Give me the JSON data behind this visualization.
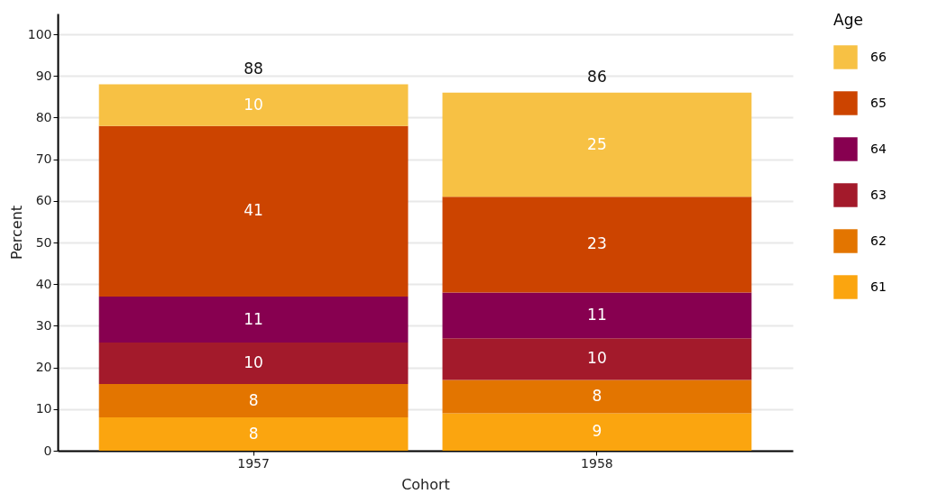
{
  "chart_data": {
    "type": "bar",
    "stacked": true,
    "xlabel": "Cohort",
    "ylabel": "Percent",
    "legend_title": "Age",
    "legend": "right",
    "categories": [
      "1957",
      "1958"
    ],
    "series": [
      {
        "name": "61",
        "color": "#fba50f",
        "values": [
          8,
          9
        ]
      },
      {
        "name": "62",
        "color": "#e37500",
        "values": [
          8,
          8
        ]
      },
      {
        "name": "63",
        "color": "#a31a2b",
        "values": [
          10,
          10
        ]
      },
      {
        "name": "64",
        "color": "#870050",
        "values": [
          11,
          11
        ]
      },
      {
        "name": "65",
        "color": "#cc4400",
        "values": [
          41,
          23
        ]
      },
      {
        "name": "66",
        "color": "#f7c144",
        "values": [
          10,
          25
        ]
      }
    ],
    "totals": [
      "88",
      "86"
    ],
    "data_labels": true,
    "ylim": [
      0,
      105
    ],
    "yticks": [
      0,
      10,
      20,
      30,
      40,
      50,
      60,
      70,
      80,
      90,
      100
    ],
    "grid": "y"
  }
}
